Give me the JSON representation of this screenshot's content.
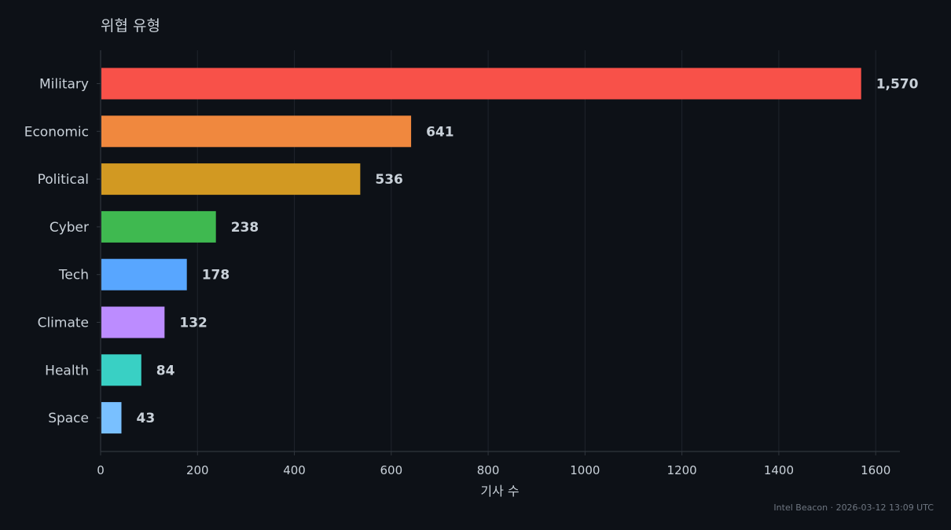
{
  "chart_data": {
    "type": "bar",
    "orientation": "horizontal",
    "title": "위협 유형",
    "xlabel": "기사 수",
    "ylabel": "",
    "xlim": [
      0,
      1650
    ],
    "x_ticks": [
      0,
      200,
      400,
      600,
      800,
      1000,
      1200,
      1400,
      1600
    ],
    "grid": "vertical",
    "categories": [
      "Military",
      "Economic",
      "Political",
      "Cyber",
      "Tech",
      "Climate",
      "Health",
      "Space"
    ],
    "values": [
      1570,
      641,
      536,
      238,
      178,
      132,
      84,
      43
    ],
    "value_labels": [
      "1,570",
      "641",
      "536",
      "238",
      "178",
      "132",
      "84",
      "43"
    ],
    "colors": [
      "#f85149",
      "#f0883e",
      "#d29922",
      "#3fb950",
      "#58a6ff",
      "#bc8cff",
      "#39d0c4",
      "#79c0ff"
    ]
  },
  "footer": {
    "text": "Intel Beacon · 2026-03-12 13:09 UTC"
  },
  "theme": {
    "background": "#0d1117",
    "grid_color": "#1f242c",
    "axis_color": "#30363d",
    "text_color": "#c9d1d9"
  }
}
